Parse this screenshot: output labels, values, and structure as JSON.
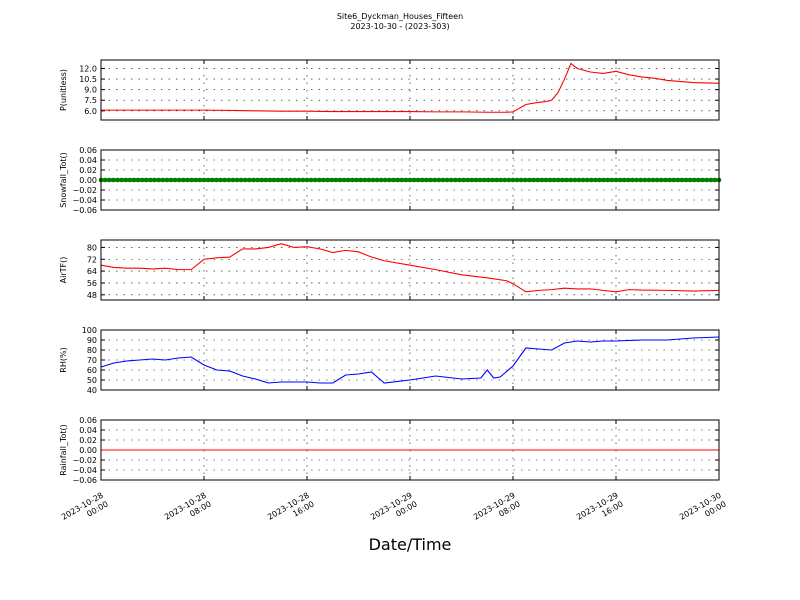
{
  "figure": {
    "title_line1": "Site6_Dyckman_Houses_Fifteen",
    "title_line2": "2023-10-30 - (2023-303)",
    "xlabel": "Date/Time"
  },
  "chart_data": {
    "type": "line",
    "x_range": [
      "2023-10-28 00:00",
      "2023-10-30 00:00"
    ],
    "x_ticks": [
      {
        "line1": "2023-10-28",
        "line2": "00:00"
      },
      {
        "line1": "2023-10-28",
        "line2": "08:00"
      },
      {
        "line1": "2023-10-28",
        "line2": "16:00"
      },
      {
        "line1": "2023-10-29",
        "line2": "00:00"
      },
      {
        "line1": "2023-10-29",
        "line2": "08:00"
      },
      {
        "line1": "2023-10-29",
        "line2": "16:00"
      },
      {
        "line1": "2023-10-30",
        "line2": "00:00"
      }
    ],
    "grid": true,
    "panels": [
      {
        "id": "p",
        "ylabel": "P(unitless)",
        "ylim": [
          4.7,
          13.2
        ],
        "yticks": [
          "6.0",
          "7.5",
          "9.0",
          "10.5",
          "12.0"
        ],
        "yticks_num": [
          6.0,
          7.5,
          9.0,
          10.5,
          12.0
        ],
        "color": "#ff0000",
        "x": [
          "2023-10-28 00:00",
          "2023-10-28 02:00",
          "2023-10-28 04:00",
          "2023-10-28 06:00",
          "2023-10-28 08:00",
          "2023-10-28 10:00",
          "2023-10-28 12:00",
          "2023-10-28 14:00",
          "2023-10-28 16:00",
          "2023-10-28 18:00",
          "2023-10-28 20:00",
          "2023-10-28 22:00",
          "2023-10-29 00:00",
          "2023-10-29 02:00",
          "2023-10-29 04:00",
          "2023-10-29 06:00",
          "2023-10-29 07:30",
          "2023-10-29 08:00",
          "2023-10-29 09:00",
          "2023-10-29 10:00",
          "2023-10-29 10:30",
          "2023-10-29 11:00",
          "2023-10-29 11:30",
          "2023-10-29 12:00",
          "2023-10-29 12:30",
          "2023-10-29 13:00",
          "2023-10-29 14:00",
          "2023-10-29 15:00",
          "2023-10-29 16:00",
          "2023-10-29 17:00",
          "2023-10-29 18:00",
          "2023-10-29 19:00",
          "2023-10-29 20:00",
          "2023-10-29 22:00",
          "2023-10-30 00:00"
        ],
        "y": [
          6.1,
          6.1,
          6.1,
          6.1,
          6.1,
          6.05,
          6.0,
          5.95,
          5.95,
          5.9,
          5.9,
          5.9,
          5.9,
          5.85,
          5.85,
          5.8,
          5.8,
          5.85,
          6.9,
          7.2,
          7.3,
          7.5,
          8.6,
          10.5,
          12.7,
          12.0,
          11.5,
          11.3,
          11.6,
          11.1,
          10.8,
          10.6,
          10.3,
          10.0,
          9.9
        ]
      },
      {
        "id": "snowfall",
        "ylabel": "Snowfall_Tot()",
        "ylim": [
          -0.06,
          0.06
        ],
        "yticks": [
          "−0.06",
          "−0.04",
          "−0.02",
          "0.00",
          "0.02",
          "0.04",
          "0.06"
        ],
        "yticks_num": [
          -0.06,
          -0.04,
          -0.02,
          0.0,
          0.02,
          0.04,
          0.06
        ],
        "color": "#008000",
        "marker": "circle",
        "x": [
          "2023-10-28 00:00",
          "2023-10-30 00:00"
        ],
        "y": [
          0.0,
          0.0
        ]
      },
      {
        "id": "airt",
        "ylabel": "AirTF()",
        "ylim": [
          44.5,
          85
        ],
        "yticks": [
          "48",
          "56",
          "64",
          "72",
          "80"
        ],
        "yticks_num": [
          48,
          56,
          64,
          72,
          80
        ],
        "color": "#ff0000",
        "x": [
          "2023-10-28 00:00",
          "2023-10-28 01:00",
          "2023-10-28 02:00",
          "2023-10-28 03:00",
          "2023-10-28 04:00",
          "2023-10-28 05:00",
          "2023-10-28 06:00",
          "2023-10-28 07:00",
          "2023-10-28 08:00",
          "2023-10-28 09:00",
          "2023-10-28 10:00",
          "2023-10-28 11:00",
          "2023-10-28 12:00",
          "2023-10-28 13:00",
          "2023-10-28 14:00",
          "2023-10-28 15:00",
          "2023-10-28 16:00",
          "2023-10-28 17:00",
          "2023-10-28 18:00",
          "2023-10-28 19:00",
          "2023-10-28 20:00",
          "2023-10-28 21:00",
          "2023-10-28 22:00",
          "2023-10-29 00:00",
          "2023-10-29 02:00",
          "2023-10-29 04:00",
          "2023-10-29 06:00",
          "2023-10-29 07:30",
          "2023-10-29 08:00",
          "2023-10-29 09:00",
          "2023-10-29 10:00",
          "2023-10-29 11:00",
          "2023-10-29 12:00",
          "2023-10-29 13:00",
          "2023-10-29 14:00",
          "2023-10-29 15:00",
          "2023-10-29 16:00",
          "2023-10-29 17:00",
          "2023-10-29 18:00",
          "2023-10-29 20:00",
          "2023-10-29 22:00",
          "2023-10-30 00:00"
        ],
        "y": [
          68,
          66.5,
          66,
          66,
          65.5,
          66,
          65,
          65,
          72,
          73,
          73.5,
          79,
          79,
          80,
          82.5,
          80,
          80.5,
          79,
          76.5,
          78,
          77,
          73.5,
          71,
          68,
          65,
          61.5,
          59.5,
          57.5,
          55.5,
          50,
          51,
          51.5,
          52.5,
          52,
          52,
          51,
          50,
          51.5,
          51.2,
          51,
          50.5,
          51
        ]
      },
      {
        "id": "rh",
        "ylabel": "RH(%)",
        "ylim": [
          40,
          100
        ],
        "yticks": [
          "40",
          "50",
          "60",
          "70",
          "80",
          "90",
          "100"
        ],
        "yticks_num": [
          40,
          50,
          60,
          70,
          80,
          90,
          100
        ],
        "color": "#0000ff",
        "x": [
          "2023-10-28 00:00",
          "2023-10-28 01:00",
          "2023-10-28 02:00",
          "2023-10-28 03:00",
          "2023-10-28 04:00",
          "2023-10-28 05:00",
          "2023-10-28 06:00",
          "2023-10-28 07:00",
          "2023-10-28 08:00",
          "2023-10-28 09:00",
          "2023-10-28 10:00",
          "2023-10-28 11:00",
          "2023-10-28 12:00",
          "2023-10-28 13:00",
          "2023-10-28 14:00",
          "2023-10-28 15:00",
          "2023-10-28 16:00",
          "2023-10-28 17:00",
          "2023-10-28 18:00",
          "2023-10-28 19:00",
          "2023-10-28 20:00",
          "2023-10-28 21:00",
          "2023-10-28 22:00",
          "2023-10-29 00:00",
          "2023-10-29 02:00",
          "2023-10-29 04:00",
          "2023-10-29 05:30",
          "2023-10-29 06:00",
          "2023-10-29 06:30",
          "2023-10-29 07:00",
          "2023-10-29 08:00",
          "2023-10-29 09:00",
          "2023-10-29 10:00",
          "2023-10-29 11:00",
          "2023-10-29 12:00",
          "2023-10-29 13:00",
          "2023-10-29 14:00",
          "2023-10-29 15:00",
          "2023-10-29 16:00",
          "2023-10-29 18:00",
          "2023-10-29 20:00",
          "2023-10-29 22:00",
          "2023-10-30 00:00"
        ],
        "y": [
          63,
          67,
          69,
          70,
          71,
          70,
          72,
          73,
          65,
          60,
          59,
          54,
          51,
          47,
          48,
          48,
          48,
          47,
          47,
          55,
          56,
          58,
          47,
          50,
          54,
          51,
          52,
          60,
          52,
          53,
          64,
          82,
          81,
          80,
          87,
          89,
          88,
          89,
          89,
          90,
          90,
          92,
          93
        ]
      },
      {
        "id": "rainfall",
        "ylabel": "Rainfall_Tot()",
        "ylim": [
          -0.06,
          0.06
        ],
        "yticks": [
          "−0.06",
          "−0.04",
          "−0.02",
          "0.00",
          "0.02",
          "0.04",
          "0.06"
        ],
        "yticks_num": [
          -0.06,
          -0.04,
          -0.02,
          0.0,
          0.02,
          0.04,
          0.06
        ],
        "color": "#ff0000",
        "x": [
          "2023-10-28 00:00",
          "2023-10-30 00:00"
        ],
        "y": [
          0.0,
          0.0
        ]
      }
    ]
  }
}
